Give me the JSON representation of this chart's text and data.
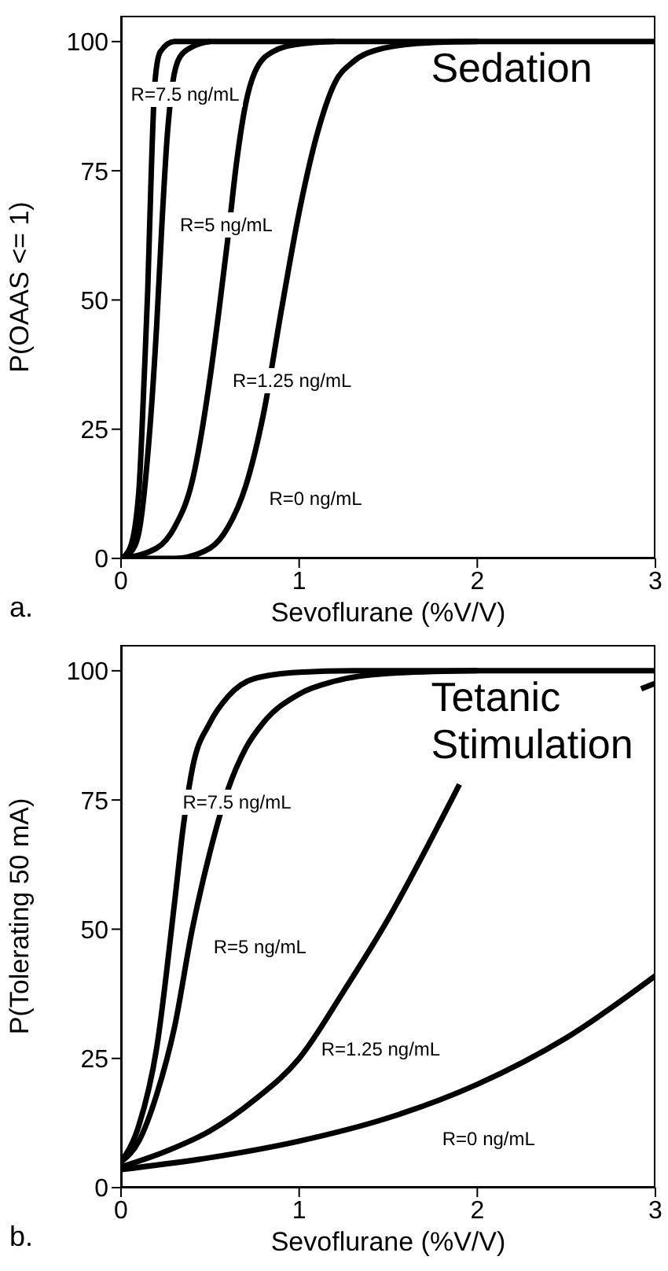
{
  "chart_data": [
    {
      "type": "line",
      "title": "Sedation",
      "xlabel": "Sevoflurane (%V/V)",
      "ylabel": "P(OAAS <= 1)",
      "xlim": [
        0,
        3
      ],
      "xticks": [
        0,
        1,
        2,
        3
      ],
      "ylim": [
        0,
        105
      ],
      "yticks": [
        0,
        25,
        50,
        75,
        100
      ],
      "series": [
        {
          "color": "#000000",
          "x": [
            0,
            0.05,
            0.1,
            0.13,
            0.15,
            0.17,
            0.19,
            0.22,
            0.3,
            3
          ],
          "values": [
            0,
            2,
            13,
            35,
            52,
            75,
            92,
            98,
            100,
            100
          ]
        },
        {
          "color": "#000000",
          "x": [
            0,
            0.05,
            0.1,
            0.15,
            0.2,
            0.23,
            0.26,
            0.29,
            0.33,
            0.4,
            0.5
          ],
          "values": [
            0,
            1,
            5,
            20,
            45,
            65,
            82,
            92,
            97,
            99,
            100
          ]
        },
        {
          "color": "#000000",
          "x": [
            0,
            0.2,
            0.3,
            0.4,
            0.5,
            0.55,
            0.6,
            0.65,
            0.7,
            0.75,
            0.85,
            1,
            1.2
          ],
          "values": [
            0,
            2,
            6,
            15,
            35,
            48,
            62,
            77,
            88,
            94,
            98,
            99.5,
            100
          ]
        },
        {
          "color": "#000000",
          "x": [
            0,
            0.3,
            0.5,
            0.6,
            0.7,
            0.8,
            0.9,
            1,
            1.1,
            1.2,
            1.3,
            1.45,
            1.7,
            2
          ],
          "values": [
            0,
            0,
            2,
            6,
            14,
            28,
            48,
            67,
            82,
            92,
            96,
            98.5,
            99.7,
            100
          ]
        }
      ],
      "annotations": [
        "R=7.5 ng/mL",
        "R=5 ng/mL",
        "R=1.25 ng/mL",
        "R=0 ng/mL",
        "a."
      ]
    },
    {
      "type": "line",
      "title": "Tetanic Stimulation",
      "xlabel": "Sevoflurane (%V/V)",
      "ylabel": "P(Tolerating 50 mA)",
      "xlim": [
        0,
        3
      ],
      "xticks": [
        0,
        1,
        2,
        3
      ],
      "ylim": [
        0,
        105
      ],
      "yticks": [
        0,
        25,
        50,
        75,
        100
      ],
      "series": [
        {
          "color": "#000000",
          "x": [
            0,
            0.1,
            0.2,
            0.3,
            0.35,
            0.4,
            0.5,
            0.6,
            0.75,
            1,
            1.3,
            3
          ],
          "values": [
            5,
            12,
            27,
            55,
            70,
            81,
            90,
            95,
            98.5,
            99.7,
            100,
            100
          ]
        },
        {
          "color": "#000000",
          "x": [
            0,
            0.1,
            0.2,
            0.3,
            0.4,
            0.5,
            0.6,
            0.7,
            0.8,
            1,
            1.2,
            1.5,
            2
          ],
          "values": [
            5,
            9,
            18,
            31,
            50,
            65,
            77,
            85,
            90,
            95.5,
            98,
            99.5,
            100
          ]
        },
        {
          "color": "#000000",
          "x": [
            0,
            0.25,
            0.5,
            0.75,
            1,
            1.25,
            1.5,
            1.75,
            1.9,
            2.4,
            2.92,
            3
          ],
          "values": [
            4,
            7,
            11,
            17,
            25,
            38,
            52,
            68,
            78,
            null,
            96.5,
            97.6
          ]
        },
        {
          "color": "#000000",
          "x": [
            0,
            0.5,
            1,
            1.5,
            2,
            2.5,
            3
          ],
          "values": [
            3.5,
            5.8,
            9,
            13.5,
            20,
            29,
            41
          ]
        }
      ],
      "annotations": [
        "R=7.5 ng/mL",
        "R=5 ng/mL",
        "R=1.25 ng/mL",
        "R=0 ng/mL",
        "b."
      ]
    }
  ]
}
